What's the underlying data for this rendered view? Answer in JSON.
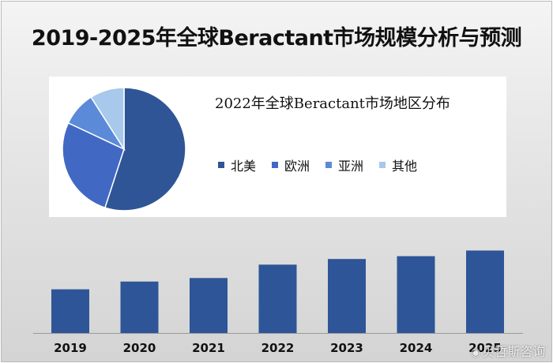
{
  "title": "2019-2025年全球Beractant市场规模分析与预测",
  "watermark": "贝哲斯咨询",
  "chart_data": [
    {
      "type": "pie",
      "title": "2022年全球Beractant市场地区分布",
      "legend_position": "right",
      "categories": [
        "北美",
        "欧洲",
        "亚洲",
        "其他"
      ],
      "values": [
        55,
        27,
        9,
        9
      ],
      "colors": [
        "#2f5597",
        "#4169c4",
        "#5b8ad8",
        "#a8c8ec"
      ]
    },
    {
      "type": "bar",
      "title": "",
      "categories": [
        "2019",
        "2020",
        "2021",
        "2022",
        "2023",
        "2024",
        "2025"
      ],
      "values": [
        62,
        73,
        78,
        97,
        105,
        109,
        117
      ],
      "ylim": [
        0,
        150
      ],
      "grid": false,
      "color": "#2e5597"
    }
  ]
}
